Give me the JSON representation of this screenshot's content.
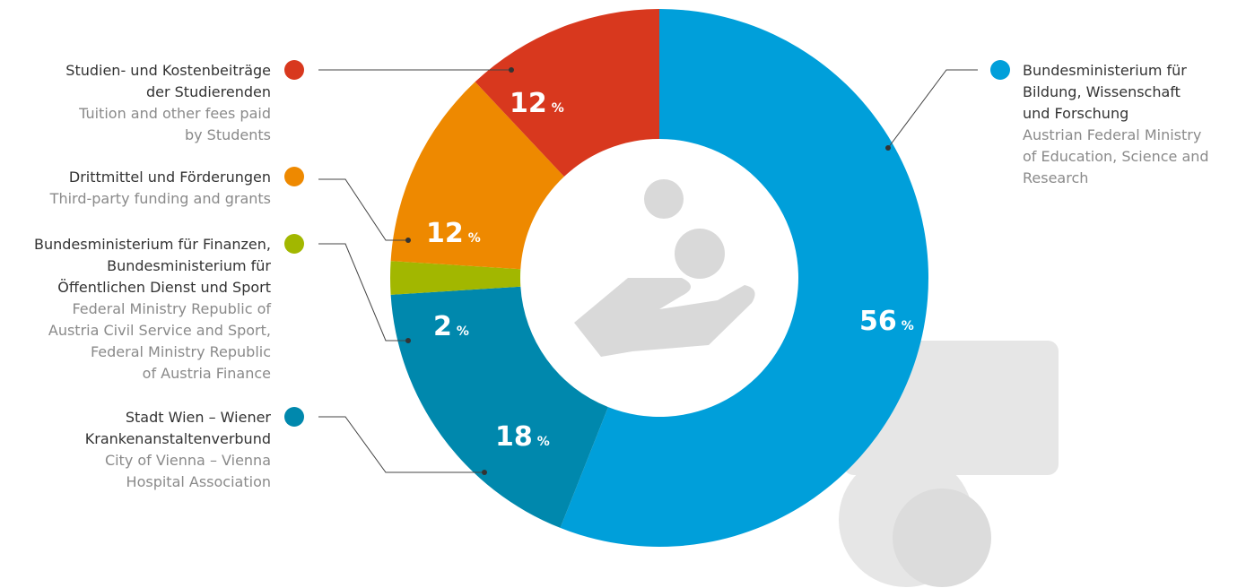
{
  "chart_data": {
    "type": "donut",
    "unit": "%",
    "slices": [
      {
        "name": [
          "Bundesministerium für",
          "Bildung, Wissenschaft",
          "und Forschung"
        ],
        "name_en": [
          "Austrian Federal Ministry",
          "of Education, Science and",
          "Research"
        ],
        "value": 56,
        "color": "#009fda"
      },
      {
        "name": [
          "Stadt Wien – Wiener",
          "Krankenanstaltenverbund"
        ],
        "name_en": [
          "City of Vienna – Vienna",
          "Hospital Association"
        ],
        "value": 18,
        "color": "#0088ad"
      },
      {
        "name": [
          "Bundesministerium für Finanzen,",
          "Bundesministerium für",
          "Öffentlichen Dienst und Sport"
        ],
        "name_en": [
          "Federal Ministry Republic of",
          "Austria Civil Service and Sport,",
          "Federal Ministry Republic",
          "of Austria Finance"
        ],
        "value": 2,
        "color": "#a2b700"
      },
      {
        "name": [
          "Drittmittel und Förderungen"
        ],
        "name_en": [
          "Third-party funding and grants"
        ],
        "value": 12,
        "color": "#ee8900"
      },
      {
        "name": [
          "Studien- und Kostenbeiträge",
          "der Studierenden"
        ],
        "name_en": [
          "Tuition and other fees paid",
          "by Students"
        ],
        "value": 12,
        "color": "#d8381e"
      }
    ]
  }
}
